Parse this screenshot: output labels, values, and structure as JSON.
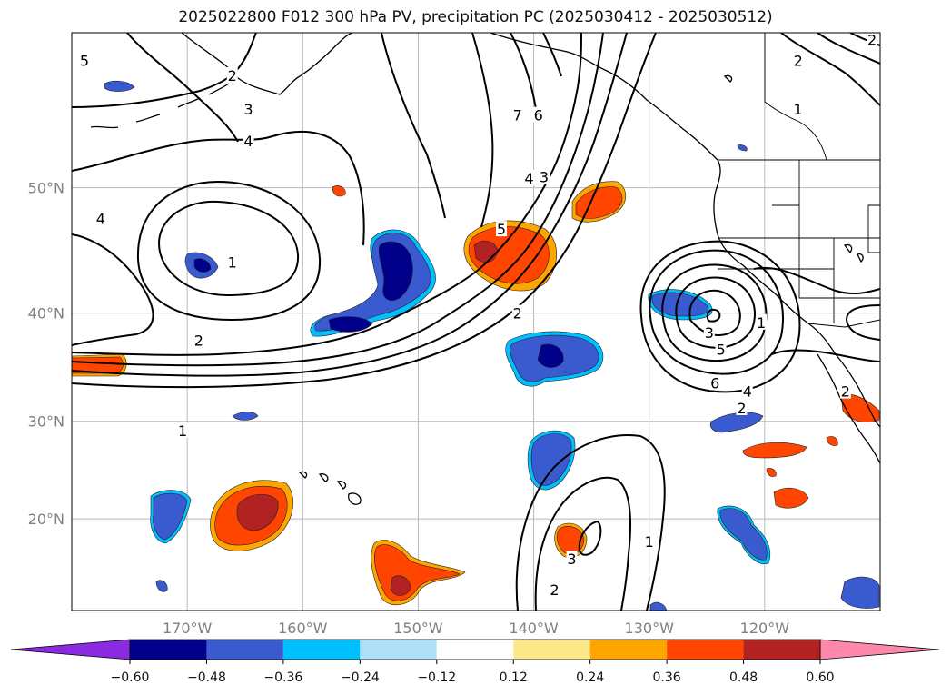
{
  "title": "2025022800 F012 300 hPa PV, precipitation PC (2025030412 - 2025030512)",
  "map": {
    "lon_range": [
      -180,
      -110
    ],
    "lat_range": [
      10,
      60
    ],
    "lat_ticks": [
      {
        "value": 20,
        "label": "20°N"
      },
      {
        "value": 30,
        "label": "30°N"
      },
      {
        "value": 40,
        "label": "40°N"
      },
      {
        "value": 50,
        "label": "50°N"
      }
    ],
    "lon_ticks": [
      {
        "value": -170,
        "label": "170°W"
      },
      {
        "value": -160,
        "label": "160°W"
      },
      {
        "value": -150,
        "label": "150°W"
      },
      {
        "value": -140,
        "label": "140°W"
      },
      {
        "value": -130,
        "label": "130°W"
      },
      {
        "value": -120,
        "label": "120°W"
      }
    ],
    "grid": true
  },
  "pv_contour_labels": [
    {
      "text": "2",
      "lon": -166.1,
      "lat": 57.5
    },
    {
      "text": "3",
      "lon": -164.7,
      "lat": 55.4
    },
    {
      "text": "4",
      "lon": -164.7,
      "lat": 53.3
    },
    {
      "text": "5",
      "lon": -178.9,
      "lat": 58.4
    },
    {
      "text": "7",
      "lon": -141.4,
      "lat": 55.0
    },
    {
      "text": "6",
      "lon": -139.6,
      "lat": 55.0
    },
    {
      "text": "4",
      "lon": -140.4,
      "lat": 50.7
    },
    {
      "text": "3",
      "lon": -139.1,
      "lat": 50.8
    },
    {
      "text": "5",
      "lon": -142.8,
      "lat": 46.9
    },
    {
      "text": "4",
      "lon": -177.5,
      "lat": 47.7
    },
    {
      "text": "1",
      "lon": -166.1,
      "lat": 44.3
    },
    {
      "text": "2",
      "lon": -169.0,
      "lat": 37.6
    },
    {
      "text": "2",
      "lon": -141.4,
      "lat": 40.0
    },
    {
      "text": "1",
      "lon": -170.4,
      "lat": 29.1
    },
    {
      "text": "3",
      "lon": -124.8,
      "lat": 38.3
    },
    {
      "text": "5",
      "lon": -123.8,
      "lat": 36.8
    },
    {
      "text": "1",
      "lon": -120.3,
      "lat": 39.2
    },
    {
      "text": "6",
      "lon": -124.3,
      "lat": 33.7
    },
    {
      "text": "4",
      "lon": -121.5,
      "lat": 32.9
    },
    {
      "text": "2",
      "lon": -122.0,
      "lat": 31.3
    },
    {
      "text": "2",
      "lon": -113.0,
      "lat": 32.9
    },
    {
      "text": "2",
      "lon": -117.1,
      "lat": 58.4
    },
    {
      "text": "1",
      "lon": -117.1,
      "lat": 55.4
    },
    {
      "text": "2",
      "lon": -110.7,
      "lat": 59.6
    },
    {
      "text": "1",
      "lon": -130.0,
      "lat": 17.6
    },
    {
      "text": "3",
      "lon": -136.7,
      "lat": 15.7
    },
    {
      "text": "2",
      "lon": -138.2,
      "lat": 12.3
    }
  ],
  "colorbar": {
    "tick_labels": [
      "−0.60",
      "−0.48",
      "−0.36",
      "−0.24",
      "−0.12",
      "0.12",
      "0.24",
      "0.36",
      "0.48",
      "0.60"
    ],
    "colors": [
      "#8a2be2",
      "#00008b",
      "#3a5bcf",
      "#00bfff",
      "#aee0f7",
      "#ffffff",
      "#ffe88a",
      "#ffa500",
      "#ff4500",
      "#b22222",
      "#ff88aa"
    ]
  }
}
